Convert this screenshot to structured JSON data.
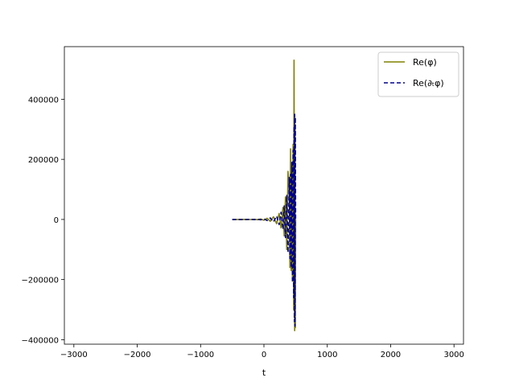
{
  "chart_data": {
    "type": "line",
    "title": "",
    "xlabel": "t",
    "ylabel": "",
    "xlim": [
      -3150,
      3150
    ],
    "ylim": [
      -415000,
      575000
    ],
    "x_ticks": [
      -3000,
      -2000,
      -1000,
      0,
      1000,
      2000,
      3000
    ],
    "x_tick_labels": [
      "−3000",
      "−2000",
      "−1000",
      "0",
      "1000",
      "2000",
      "3000"
    ],
    "y_ticks": [
      -400000,
      -200000,
      0,
      200000,
      400000
    ],
    "y_tick_labels": [
      "−400000",
      "−200000",
      "0",
      "200000",
      "400000"
    ],
    "grid": false,
    "legend_position": "top-right",
    "series": [
      {
        "name": "Re(φ)",
        "color": "#808000",
        "style": "solid",
        "x": [
          -500,
          -400,
          -300,
          -200,
          -150,
          -100,
          -50,
          0,
          50,
          100,
          150,
          200,
          240,
          270,
          300,
          320,
          340,
          360,
          380,
          400,
          410,
          420,
          430,
          440,
          450,
          460,
          470,
          475,
          480,
          485,
          490,
          495,
          500
        ],
        "y": [
          0,
          0,
          200,
          -300,
          600,
          -800,
          1500,
          -2500,
          4000,
          -6000,
          9000,
          -14000,
          20000,
          -28000,
          40000,
          -55000,
          75000,
          -100000,
          160000,
          100000,
          -160000,
          235000,
          -170000,
          130000,
          -200000,
          250000,
          -300000,
          530000,
          150000,
          -370000,
          300000,
          -360000,
          0
        ]
      },
      {
        "name": "Re(∂ₜφ)",
        "color": "#00008b",
        "style": "dashed",
        "x": [
          -500,
          -400,
          -300,
          -200,
          -150,
          -100,
          -50,
          0,
          50,
          100,
          150,
          200,
          240,
          270,
          300,
          320,
          340,
          360,
          380,
          400,
          410,
          420,
          430,
          440,
          450,
          460,
          470,
          475,
          480,
          485,
          490,
          495,
          500
        ],
        "y": [
          0,
          0,
          -150,
          250,
          -450,
          700,
          -1200,
          2000,
          -3500,
          5000,
          -8000,
          11000,
          -17000,
          24000,
          -33000,
          45000,
          -60000,
          80000,
          -110000,
          140000,
          -130000,
          150000,
          -160000,
          190000,
          -210000,
          230000,
          -260000,
          310000,
          -340000,
          350000,
          -355000,
          340000,
          0
        ]
      }
    ]
  }
}
